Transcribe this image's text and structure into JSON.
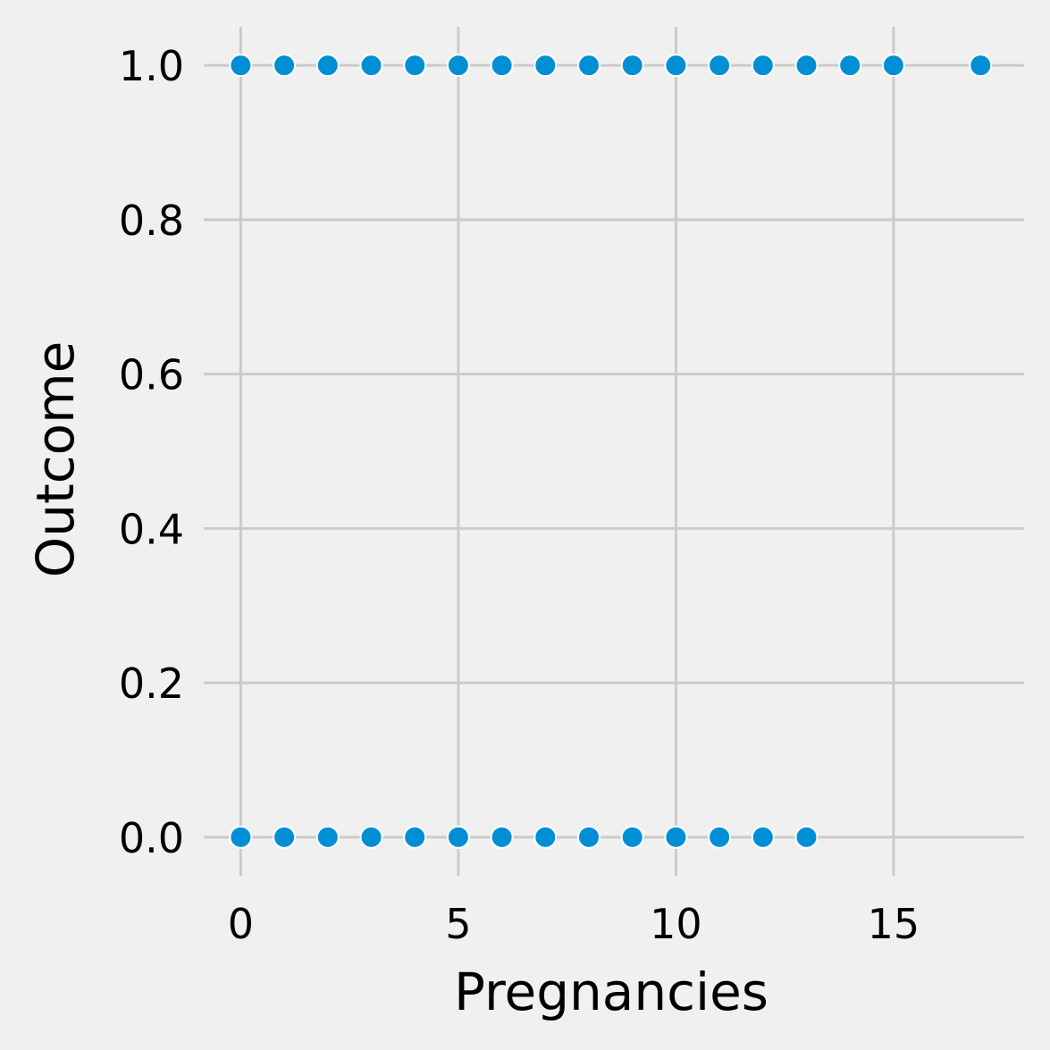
{
  "chart_data": {
    "type": "scatter",
    "title": "",
    "xlabel": "Pregnancies",
    "ylabel": "Outcome",
    "xlim": [
      -0.85,
      18.0
    ],
    "ylim": [
      -0.05,
      1.05
    ],
    "xticks": [
      0,
      5,
      10,
      15
    ],
    "yticks": [
      0.0,
      0.2,
      0.4,
      0.6,
      0.8,
      1.0
    ],
    "xtick_labels": [
      "0",
      "5",
      "10",
      "15"
    ],
    "ytick_labels": [
      "0.0",
      "0.2",
      "0.4",
      "0.6",
      "0.8",
      "1.0"
    ],
    "grid": true,
    "point_color": "#008fd5",
    "background_color": "#f0f0f0",
    "points": [
      {
        "x": 0,
        "y": 1
      },
      {
        "x": 1,
        "y": 1
      },
      {
        "x": 2,
        "y": 1
      },
      {
        "x": 3,
        "y": 1
      },
      {
        "x": 4,
        "y": 1
      },
      {
        "x": 5,
        "y": 1
      },
      {
        "x": 6,
        "y": 1
      },
      {
        "x": 7,
        "y": 1
      },
      {
        "x": 8,
        "y": 1
      },
      {
        "x": 9,
        "y": 1
      },
      {
        "x": 10,
        "y": 1
      },
      {
        "x": 11,
        "y": 1
      },
      {
        "x": 12,
        "y": 1
      },
      {
        "x": 13,
        "y": 1
      },
      {
        "x": 14,
        "y": 1
      },
      {
        "x": 15,
        "y": 1
      },
      {
        "x": 17,
        "y": 1
      },
      {
        "x": 0,
        "y": 0
      },
      {
        "x": 1,
        "y": 0
      },
      {
        "x": 2,
        "y": 0
      },
      {
        "x": 3,
        "y": 0
      },
      {
        "x": 4,
        "y": 0
      },
      {
        "x": 5,
        "y": 0
      },
      {
        "x": 6,
        "y": 0
      },
      {
        "x": 7,
        "y": 0
      },
      {
        "x": 8,
        "y": 0
      },
      {
        "x": 9,
        "y": 0
      },
      {
        "x": 10,
        "y": 0
      },
      {
        "x": 11,
        "y": 0
      },
      {
        "x": 12,
        "y": 0
      },
      {
        "x": 13,
        "y": 0
      }
    ]
  }
}
